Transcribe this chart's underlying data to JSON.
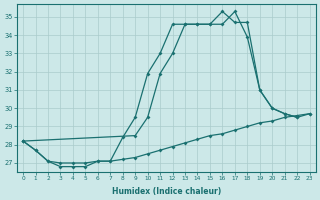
{
  "xlabel": "Humidex (Indice chaleur)",
  "background_color": "#cce8e8",
  "grid_color": "#aacccc",
  "line_color": "#1a7070",
  "xlim": [
    -0.5,
    23.5
  ],
  "ylim": [
    26.5,
    35.7
  ],
  "xticks": [
    0,
    1,
    2,
    3,
    4,
    5,
    6,
    7,
    8,
    9,
    10,
    11,
    12,
    13,
    14,
    15,
    16,
    17,
    18,
    19,
    20,
    21,
    22,
    23
  ],
  "yticks": [
    27,
    28,
    29,
    30,
    31,
    32,
    33,
    34,
    35
  ],
  "line1_x": [
    0,
    1,
    2,
    3,
    4,
    5,
    6,
    7,
    8,
    9,
    10,
    11,
    12,
    13,
    14,
    15,
    16,
    17,
    18,
    19,
    20,
    21,
    22
  ],
  "line1_y": [
    28.2,
    27.7,
    27.1,
    26.8,
    26.8,
    26.8,
    27.1,
    27.1,
    28.4,
    29.5,
    31.9,
    33.0,
    34.6,
    34.6,
    34.6,
    34.6,
    35.3,
    34.7,
    34.7,
    31.0,
    30.0,
    29.7,
    29.5
  ],
  "line2_x": [
    0,
    1,
    2,
    3,
    4,
    5,
    6,
    7,
    8,
    9,
    10,
    11,
    12,
    13,
    14,
    15,
    16,
    17,
    18,
    19,
    20,
    21,
    22,
    23
  ],
  "line2_y": [
    28.2,
    27.7,
    27.1,
    27.0,
    27.0,
    27.0,
    27.1,
    27.1,
    27.2,
    27.3,
    27.5,
    27.7,
    27.9,
    28.1,
    28.3,
    28.5,
    28.6,
    28.8,
    29.0,
    29.2,
    29.3,
    29.5,
    29.6,
    29.7
  ],
  "line3_x": [
    0,
    9,
    10,
    11,
    12,
    13,
    14,
    15,
    16,
    17,
    18,
    19,
    20,
    21,
    22,
    23
  ],
  "line3_y": [
    28.2,
    28.5,
    29.5,
    31.9,
    33.0,
    34.6,
    34.6,
    34.6,
    34.6,
    35.3,
    33.9,
    31.0,
    30.0,
    29.7,
    29.5,
    29.7
  ]
}
